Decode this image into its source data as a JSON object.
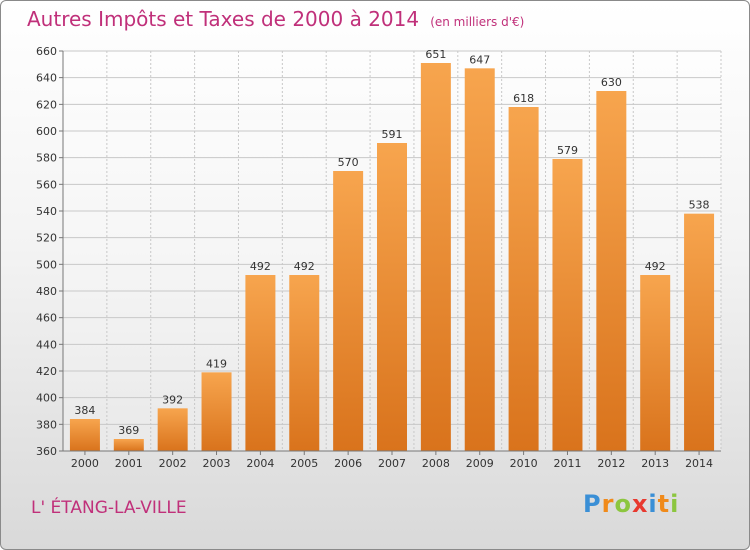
{
  "chart_data": {
    "type": "bar",
    "title": "Autres Impôts et Taxes de 2000 à 2014",
    "unit": "(en milliers d'€)",
    "categories": [
      "2000",
      "2001",
      "2002",
      "2003",
      "2004",
      "2005",
      "2006",
      "2007",
      "2008",
      "2009",
      "2010",
      "2011",
      "2012",
      "2013",
      "2014"
    ],
    "values": [
      384,
      369,
      392,
      419,
      492,
      492,
      570,
      591,
      651,
      647,
      618,
      579,
      630,
      492,
      538
    ],
    "ylim": [
      360,
      660
    ],
    "yticks": [
      360,
      380,
      400,
      420,
      440,
      460,
      480,
      500,
      520,
      540,
      560,
      580,
      600,
      620,
      640,
      660
    ],
    "grid": true,
    "bar_color_top": "#f7a54e",
    "bar_color_bottom": "#d9731c"
  },
  "commune": "L' ÉTANG-LA-VILLE",
  "logo": {
    "text": "Proxiti",
    "letters": [
      {
        "ch": "P",
        "color": "#3a8fd6"
      },
      {
        "ch": "r",
        "color": "#f08a1a"
      },
      {
        "ch": "o",
        "color": "#8cc63f"
      },
      {
        "ch": "x",
        "color": "#e8392f"
      },
      {
        "ch": "i",
        "color": "#3a8fd6"
      },
      {
        "ch": "t",
        "color": "#f08a1a"
      },
      {
        "ch": "i",
        "color": "#8cc63f"
      }
    ]
  }
}
